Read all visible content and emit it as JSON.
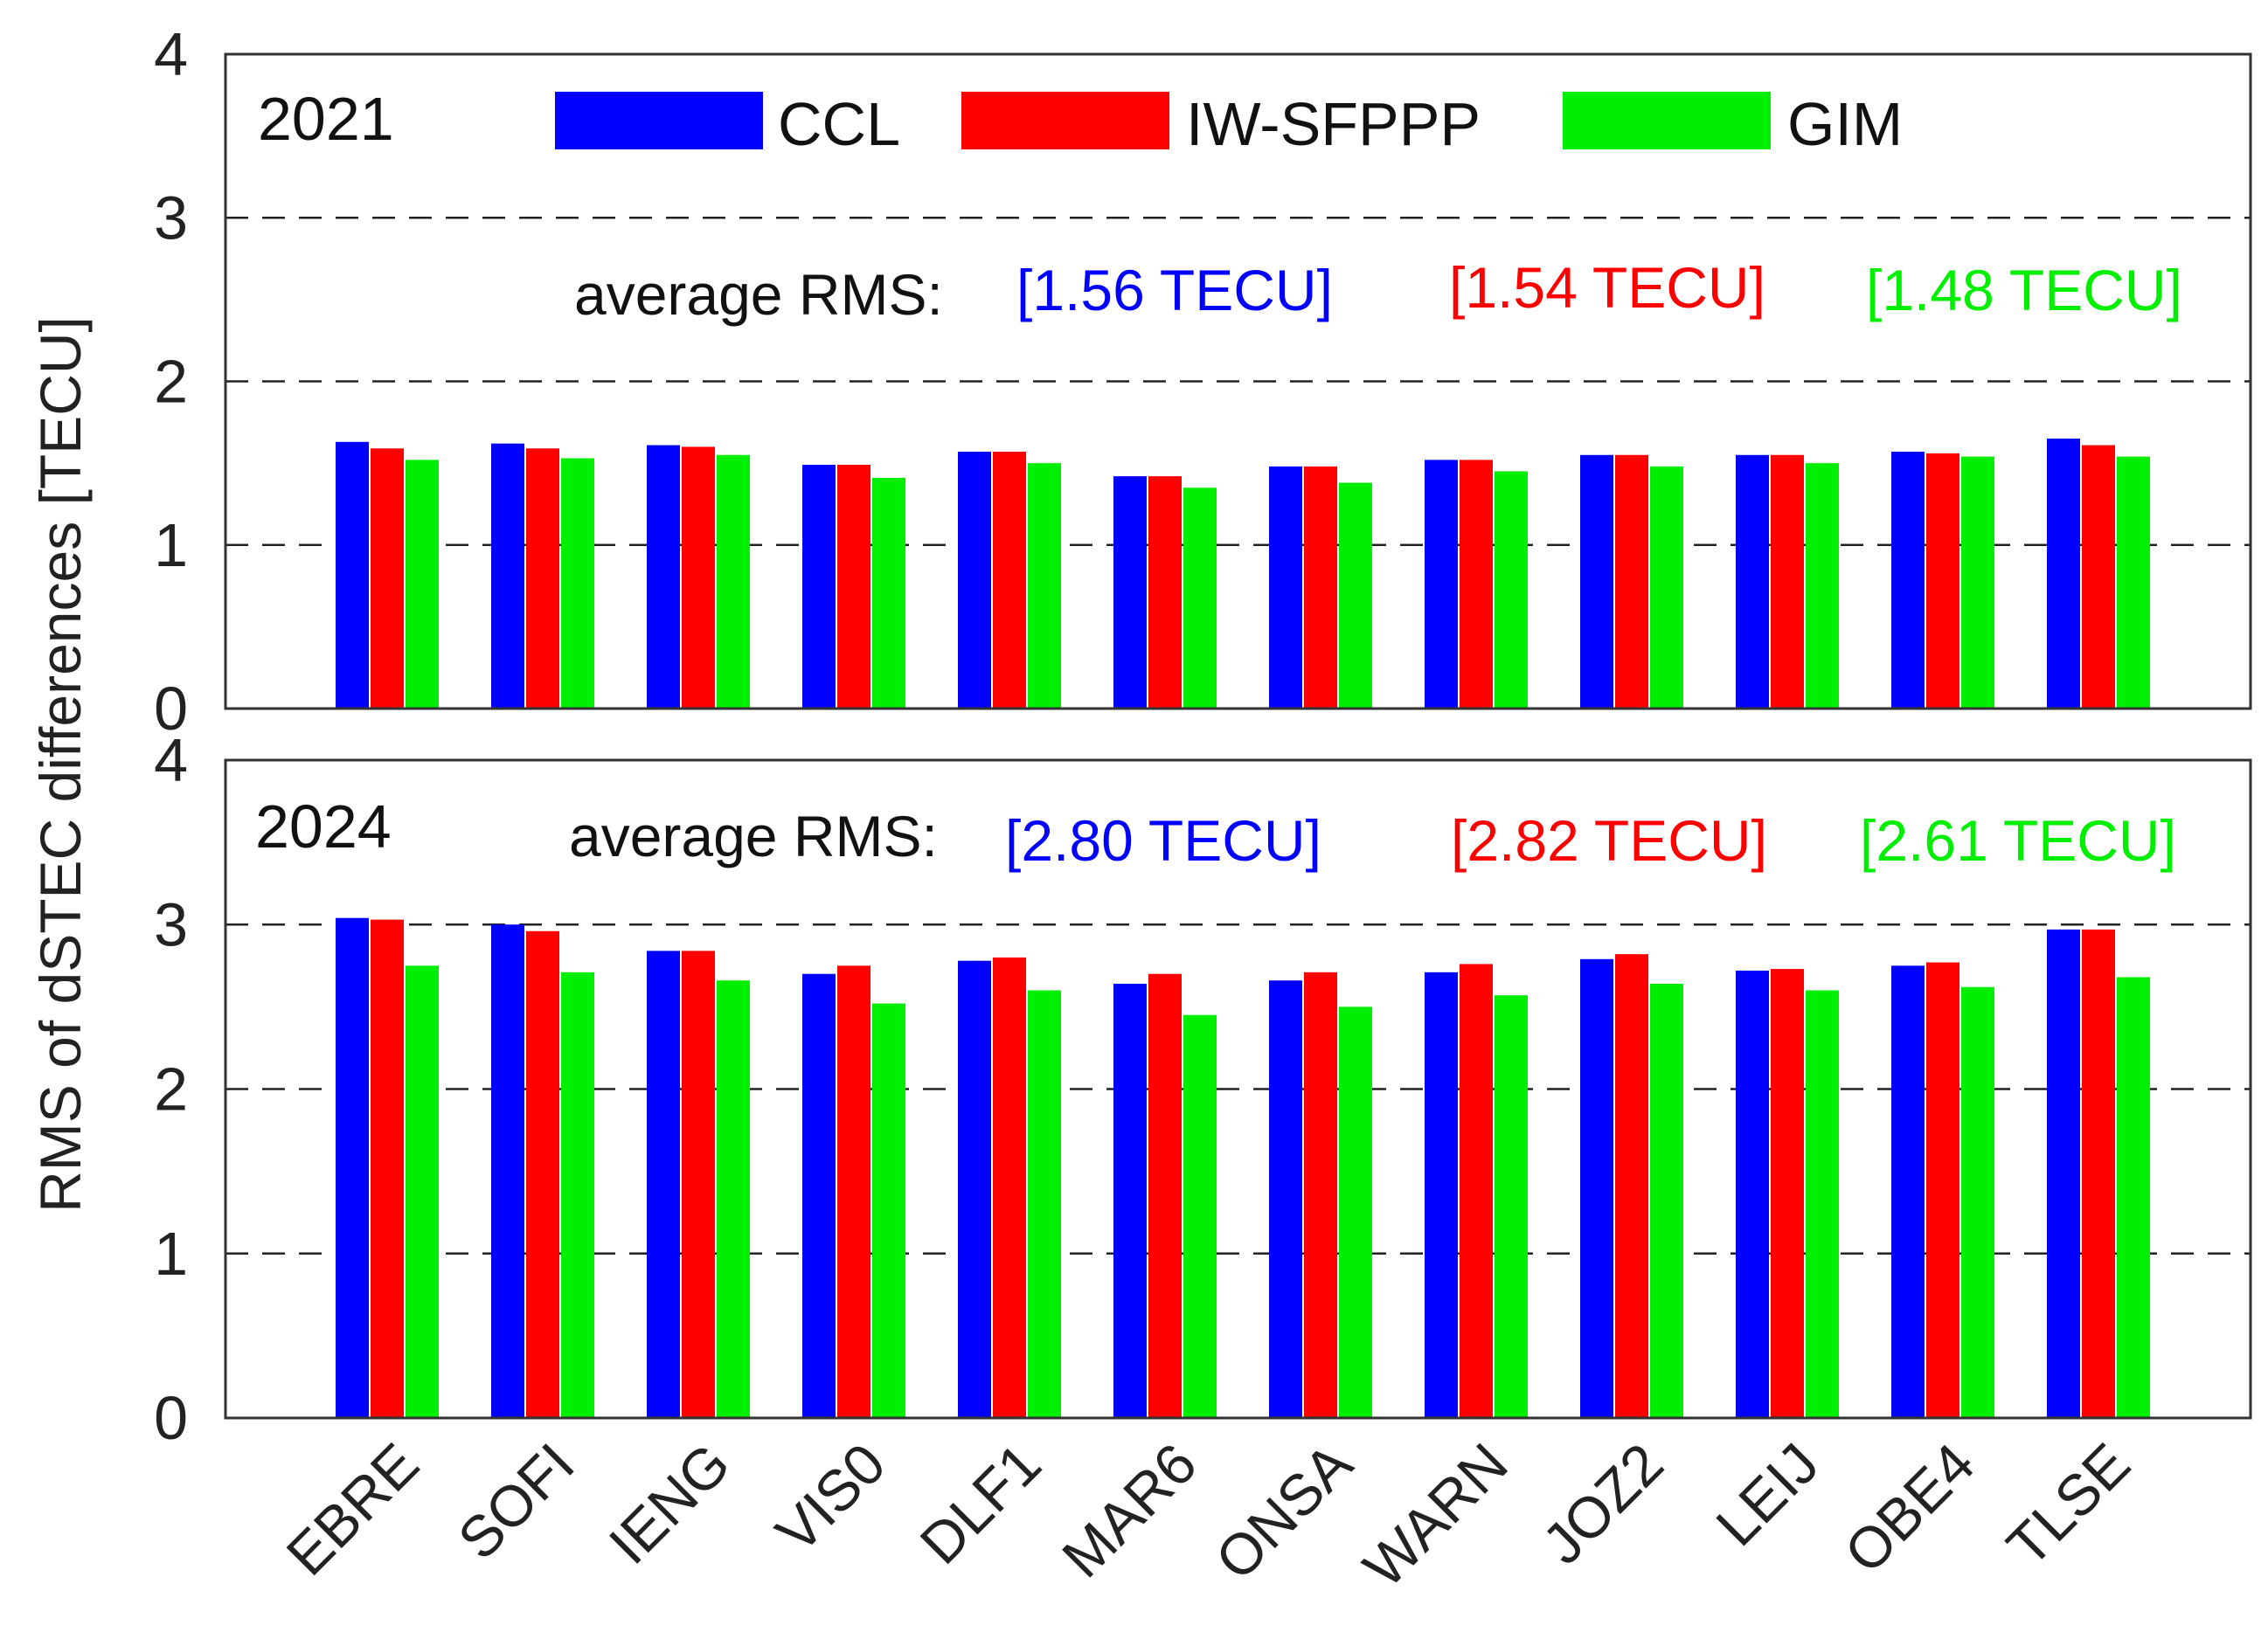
{
  "chart_data": {
    "type": "bar",
    "ylabel": "RMS of dSTEC differences [TECU]",
    "ylim": [
      0,
      4
    ],
    "yticks": [
      "0",
      "1",
      "2",
      "3",
      "4"
    ],
    "categories": [
      "EBRE",
      "SOFI",
      "IENG",
      "VIS0",
      "DLF1",
      "MAR6",
      "ONSA",
      "WARN",
      "JOZ2",
      "LEIJ",
      "OBE4",
      "TLSE"
    ],
    "legend": [
      "CCL",
      "IW-SFPPP",
      "GIM"
    ],
    "colors": [
      "#0000ff",
      "#ff0000",
      "#00ee00"
    ],
    "average_label": "average RMS:",
    "panels": [
      {
        "year": "2021",
        "averages": [
          "[1.56 TECU]",
          "[1.54 TECU]",
          "[1.48 TECU]"
        ],
        "series": [
          {
            "name": "CCL",
            "values": [
              1.63,
              1.62,
              1.61,
              1.49,
              1.57,
              1.42,
              1.48,
              1.52,
              1.55,
              1.55,
              1.57,
              1.65
            ]
          },
          {
            "name": "IW-SFPPP",
            "values": [
              1.59,
              1.59,
              1.6,
              1.49,
              1.57,
              1.42,
              1.48,
              1.52,
              1.55,
              1.55,
              1.56,
              1.61
            ]
          },
          {
            "name": "GIM",
            "values": [
              1.52,
              1.53,
              1.55,
              1.41,
              1.5,
              1.35,
              1.38,
              1.45,
              1.48,
              1.5,
              1.54,
              1.54
            ]
          }
        ]
      },
      {
        "year": "2024",
        "averages": [
          "[2.80 TECU]",
          "[2.82 TECU]",
          "[2.61 TECU]"
        ],
        "series": [
          {
            "name": "CCL",
            "values": [
              3.04,
              3.0,
              2.84,
              2.7,
              2.78,
              2.64,
              2.66,
              2.71,
              2.79,
              2.72,
              2.75,
              2.97
            ]
          },
          {
            "name": "IW-SFPPP",
            "values": [
              3.03,
              2.96,
              2.84,
              2.75,
              2.8,
              2.7,
              2.71,
              2.76,
              2.82,
              2.73,
              2.77,
              2.97
            ]
          },
          {
            "name": "GIM",
            "values": [
              2.75,
              2.71,
              2.66,
              2.52,
              2.6,
              2.45,
              2.5,
              2.57,
              2.64,
              2.6,
              2.62,
              2.68
            ]
          }
        ]
      }
    ]
  }
}
